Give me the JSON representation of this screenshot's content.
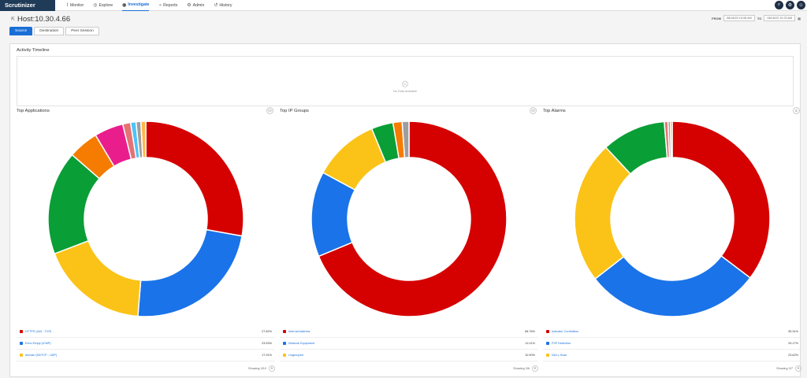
{
  "brand": "Scrutinizer",
  "nav": [
    {
      "label": "Monitor",
      "icon": "pulse-icon"
    },
    {
      "label": "Explore",
      "icon": "compass-icon"
    },
    {
      "label": "Investigate",
      "icon": "investigate-icon",
      "active": true
    },
    {
      "label": "Reports",
      "icon": "reports-icon"
    },
    {
      "label": "Admin",
      "icon": "admin-icon"
    },
    {
      "label": "History",
      "icon": "history-icon"
    }
  ],
  "top_icons": [
    "search-icon",
    "settings-icon",
    "user-icon"
  ],
  "host": {
    "title": "Host:10.30.4.66"
  },
  "range": {
    "from_label": "FROM",
    "from_value": "08/18/20 10:08 AM",
    "to_label": "TO",
    "to_value": "08/18/20 10:23 AM"
  },
  "tabs": [
    {
      "label": "Source",
      "active": true
    },
    {
      "label": "Destination"
    },
    {
      "label": "Peer Session"
    }
  ],
  "timeline": {
    "title": "Activity Timeline",
    "empty": "No Data Available"
  },
  "colors": {
    "red": "#d50000",
    "blue": "#1a73e8",
    "yellow": "#fbc318",
    "green": "#0a9e36",
    "orange": "#f57c00",
    "pink": "#e91e8c",
    "gray": "#9e9e9e"
  },
  "cards": [
    {
      "title": "Top Applications",
      "icon": "group-icon",
      "slices": [
        {
          "value": 27.8,
          "color": "#d50000"
        },
        {
          "value": 23.5,
          "color": "#1a73e8"
        },
        {
          "value": 17.9,
          "color": "#fbc318"
        },
        {
          "value": 17.2,
          "color": "#0a9e36"
        },
        {
          "value": 5.0,
          "color": "#f57c00"
        },
        {
          "value": 4.8,
          "color": "#e91e8c"
        },
        {
          "value": 1.3,
          "color": "#e57373"
        },
        {
          "value": 0.9,
          "color": "#4fc3f7"
        },
        {
          "value": 0.8,
          "color": "#9e9e9e"
        },
        {
          "value": 0.8,
          "color": "#ffb74d"
        }
      ],
      "legend": [
        {
          "name": "HTTPS (443 - TCP)",
          "pct": "27.82%",
          "color": "#d50000"
        },
        {
          "name": "Echo-Reply (ICMP)",
          "pct": "23.53%",
          "color": "#1a73e8"
        },
        {
          "name": "domain (53/TCP - UDP)",
          "pct": "17.91%",
          "color": "#fbc318"
        }
      ],
      "showing": "Showing 3/10"
    },
    {
      "title": "Top IP Groups",
      "icon": "group-icon",
      "slices": [
        {
          "value": 68.76,
          "color": "#d50000"
        },
        {
          "value": 14.11,
          "color": "#1a73e8"
        },
        {
          "value": 10.9,
          "color": "#fbc318"
        },
        {
          "value": 3.6,
          "color": "#0a9e36"
        },
        {
          "value": 1.5,
          "color": "#f57c00"
        },
        {
          "value": 1.13,
          "color": "#9e9e9e"
        }
      ],
      "legend": [
        {
          "name": "Internal Address",
          "pct": "68.76%",
          "color": "#d50000"
        },
        {
          "name": "Network Equipment",
          "pct": "14.11%",
          "color": "#1a73e8"
        },
        {
          "name": "Ungrouped",
          "pct": "10.90%",
          "color": "#fbc318"
        }
      ],
      "showing": "Showing 3/6"
    },
    {
      "title": "Top Alarms",
      "icon": "search-icon",
      "slices": [
        {
          "value": 35.31,
          "color": "#d50000"
        },
        {
          "value": 29.17,
          "color": "#1a73e8"
        },
        {
          "value": 23.62,
          "color": "#fbc318"
        },
        {
          "value": 10.6,
          "color": "#0a9e36"
        },
        {
          "value": 0.6,
          "color": "#e57373"
        },
        {
          "value": 0.4,
          "color": "#9e9e9e"
        },
        {
          "value": 0.3,
          "color": "#f57c00"
        }
      ],
      "legend": [
        {
          "name": "Indicator Correlation",
          "pct": "35.31%",
          "color": "#d50000"
        },
        {
          "name": "P2P Detection",
          "pct": "29.17%",
          "color": "#1a73e8"
        },
        {
          "name": "NULL Scan",
          "pct": "23.62%",
          "color": "#fbc318"
        }
      ],
      "showing": "Showing 3/7"
    }
  ]
}
